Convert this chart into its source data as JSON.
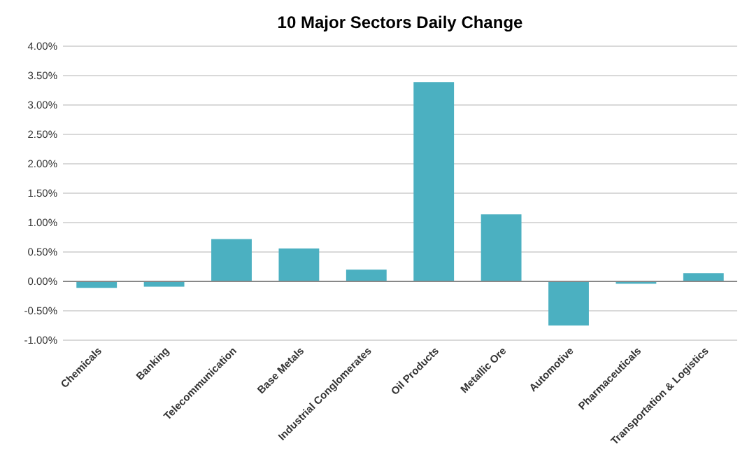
{
  "chart_data": {
    "type": "bar",
    "title": "10 Major Sectors Daily Change",
    "categories": [
      "Chemicals",
      "Banking",
      "Telecommunication",
      "Base Metals",
      "Industrial Conglomerates",
      "Oil Products",
      "Metallic Ore",
      "Automotive",
      "Pharmaceuticals",
      "Transportation & Logistics"
    ],
    "values": [
      -0.11,
      -0.09,
      0.72,
      0.56,
      0.2,
      3.39,
      1.14,
      -0.75,
      -0.04,
      0.14
    ],
    "color": "#4bb0c1",
    "ylim": [
      -1,
      4
    ],
    "yticks": [
      {
        "value": -1,
        "label": "-1.00%"
      },
      {
        "value": -0.5,
        "label": "-0.50%"
      },
      {
        "value": 0,
        "label": "0.00%"
      },
      {
        "value": 0.5,
        "label": "0.50%"
      },
      {
        "value": 1,
        "label": "1.00%"
      },
      {
        "value": 1.5,
        "label": "1.50%"
      },
      {
        "value": 2,
        "label": "2.00%"
      },
      {
        "value": 2.5,
        "label": "2.50%"
      },
      {
        "value": 3,
        "label": "3.00%"
      },
      {
        "value": 3.5,
        "label": "3.50%"
      },
      {
        "value": 4,
        "label": "4.00%"
      }
    ],
    "grid": "y"
  }
}
